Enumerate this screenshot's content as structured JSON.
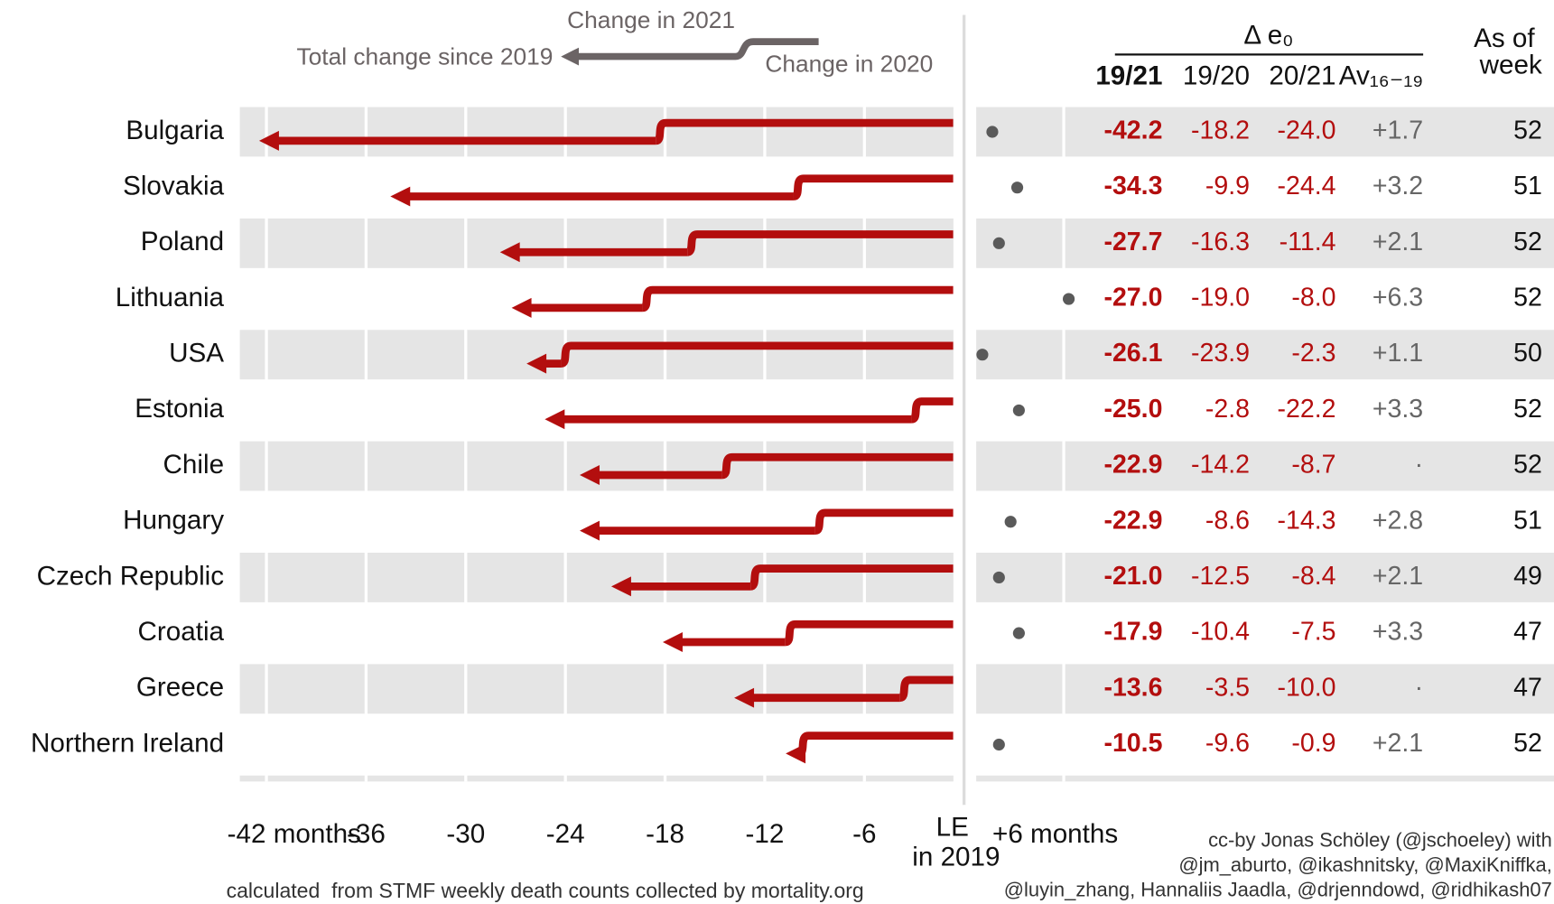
{
  "chart_data": {
    "type": "arrow",
    "legend": {
      "change_2021": "Change in 2021",
      "total": "Total change since 2019",
      "change_2020": "Change in 2020"
    },
    "table_title": "Δ e₀",
    "week_header": "As of week",
    "categories": [
      "Bulgaria",
      "Slovakia",
      "Poland",
      "Lithuania",
      "USA",
      "Estonia",
      "Chile",
      "Hungary",
      "Czech Republic",
      "Croatia",
      "Greece",
      "Northern Ireland"
    ],
    "series": [
      {
        "name": "19/21",
        "color": "#b30e0e",
        "values": [
          -42.2,
          -34.3,
          -27.7,
          -27.0,
          -26.1,
          -25.0,
          -22.9,
          -22.9,
          -21.0,
          -17.9,
          -13.6,
          -10.5
        ],
        "value_labels": [
          "-42.2",
          "-34.3",
          "-27.7",
          "-27.0",
          "-26.1",
          "-25.0",
          "-22.9",
          "-22.9",
          "-21.0",
          "-17.9",
          "-13.6",
          "-10.5"
        ]
      },
      {
        "name": "19/20",
        "color": "#b30e0e",
        "values": [
          -18.2,
          -9.9,
          -16.3,
          -19.0,
          -23.9,
          -2.8,
          -14.2,
          -8.6,
          -12.5,
          -10.4,
          -3.5,
          -9.6
        ],
        "value_labels": [
          "-18.2",
          "-9.9",
          "-16.3",
          "-19.0",
          "-23.9",
          "-2.8",
          "-14.2",
          "-8.6",
          "-12.5",
          "-10.4",
          "-3.5",
          "-9.6"
        ]
      },
      {
        "name": "20/21",
        "color": "#b30e0e",
        "values": [
          -24.0,
          -24.4,
          -11.4,
          -8.0,
          -2.3,
          -22.2,
          -8.7,
          -14.3,
          -8.4,
          -7.5,
          -10.0,
          -0.9
        ],
        "value_labels": [
          "-24.0",
          "-24.4",
          "-11.4",
          "-8.0",
          "-2.3",
          "-22.2",
          "-8.7",
          "-14.3",
          "-8.4",
          "-7.5",
          "-10.0",
          "-0.9"
        ]
      },
      {
        "name": "Av₁₆₋₁₉",
        "color": "#5a5a5a",
        "values": [
          1.7,
          3.2,
          2.1,
          6.3,
          1.1,
          3.3,
          null,
          2.8,
          2.1,
          3.3,
          null,
          2.1
        ],
        "value_labels": [
          "+1.7",
          "+3.2",
          "+2.1",
          "+6.3",
          "+1.1",
          "+3.3",
          "·",
          "+2.8",
          "+2.1",
          "+3.3",
          "·",
          "+2.1"
        ]
      }
    ],
    "weeks": [
      52,
      51,
      52,
      52,
      50,
      52,
      52,
      51,
      49,
      47,
      47,
      52
    ],
    "xlim": [
      -43.6,
      6.1
    ],
    "xticks": [
      {
        "value": -42,
        "label": "-42 months"
      },
      -36,
      -30,
      -24,
      -18,
      -12,
      -6,
      {
        "value": 0,
        "label": "LE in 2019"
      },
      {
        "value": 6,
        "label": "+6 months"
      }
    ],
    "grid": true,
    "footnote": "calculated  from STMF weekly death counts collected by mortality.org",
    "credit": [
      "cc-by Jonas Schöley (@jschoeley) with",
      "@jm_aburto, @ikashnitsky, @MaxiKniffka,",
      "@luyin_zhang, Hannaliis Jaadla, @drjenndowd, @ridhikash07"
    ]
  }
}
